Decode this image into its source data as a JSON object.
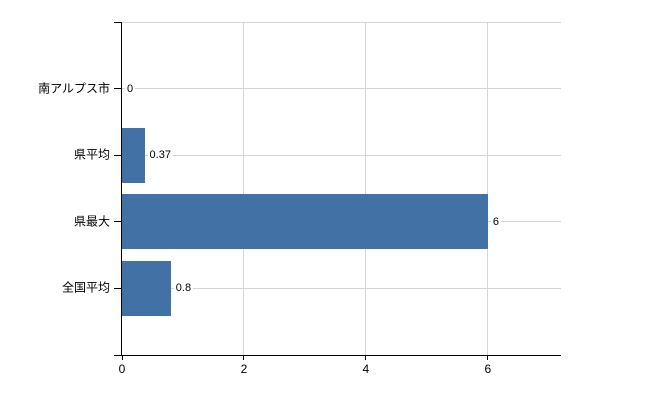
{
  "chart_data": {
    "type": "bar",
    "orientation": "horizontal",
    "title": "",
    "xlabel": "",
    "ylabel": "",
    "categories": [
      "南アルプス市",
      "県平均",
      "県最大",
      "全国平均"
    ],
    "values": [
      0,
      0.37,
      6,
      0.8
    ],
    "value_labels": [
      "0",
      "0.37",
      "6",
      "0.8"
    ],
    "x_ticks": [
      "0",
      "2",
      "4",
      "6"
    ],
    "x_tick_values": [
      0,
      2,
      4,
      6
    ],
    "xlim": [
      0,
      7.2
    ],
    "grid": true,
    "legend": "none",
    "bar_color": "#4271a6",
    "grid_color": "#d6d6d6",
    "axis_color": "#000000",
    "background_color": "#ffffff"
  }
}
